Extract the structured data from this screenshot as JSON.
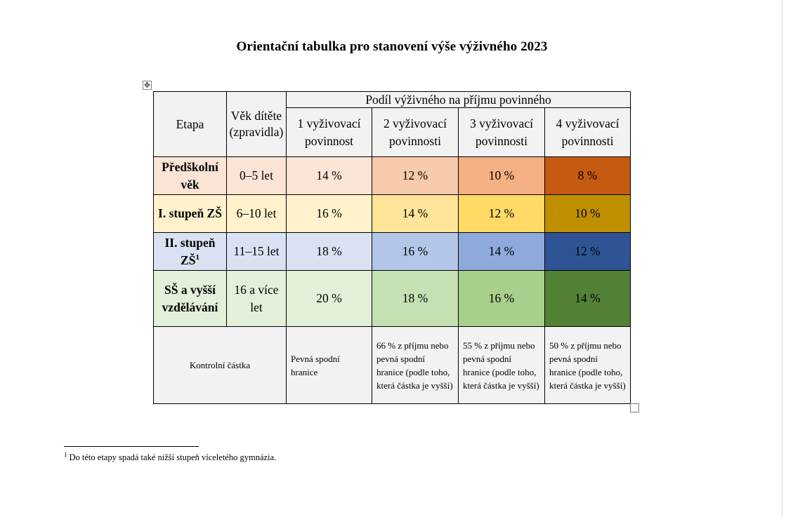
{
  "document": {
    "title": "Orientační tabulka pro stanovení výše výživného 2023"
  },
  "table": {
    "header": {
      "stage": "Etapa",
      "age": "Věk dítěte (zpravidla)",
      "share_group": "Podíl výživného na příjmu povinného",
      "obligations": [
        "1 vyživovací povinnost",
        "2 vyživovací povinnosti",
        "3 vyživovací povinnosti",
        "4 vyživovací povinnosti"
      ]
    },
    "rows": [
      {
        "stage": "Předškolní věk",
        "stage_sup": "",
        "age": "0–5 let",
        "values": [
          "14 %",
          "12 %",
          "10 %",
          "8 %"
        ]
      },
      {
        "stage": "I. stupeň ZŠ",
        "stage_sup": "",
        "age": "6–10 let",
        "values": [
          "16 %",
          "14 %",
          "12 %",
          "10 %"
        ]
      },
      {
        "stage": "II. stupeň ZŠ",
        "stage_sup": "1",
        "age": "11–15 let",
        "values": [
          "18 %",
          "16 %",
          "14 %",
          "12 %"
        ]
      },
      {
        "stage": "SŠ a vyšší vzdělávání",
        "stage_sup": "",
        "age": "16 a více let",
        "values": [
          "20 %",
          "18 %",
          "16 %",
          "14 %"
        ]
      }
    ],
    "control": {
      "label": "Kontrolní částka",
      "cells": [
        "Pevná spodní hranice",
        "66 % z příjmu nebo pevná spodní hranice (podle toho, která částka je vyšší)",
        "55 % z příjmu nebo pevná spodní hranice (podle toho, která částka je vyšší)",
        "50 % z příjmu nebo pevná spodní hranice (podle toho, která částka je vyšší)"
      ]
    },
    "colors": {
      "preschool": [
        "#fbe4d5",
        "#f7caac",
        "#f4b083",
        "#c55a11"
      ],
      "primary1": [
        "#fff2cc",
        "#ffe599",
        "#ffd966",
        "#bf8f00"
      ],
      "primary2": [
        "#d9e2f3",
        "#b4c6e7",
        "#8eaadb",
        "#2f5496"
      ],
      "secondary": [
        "#e2efd9",
        "#c5e0b3",
        "#a8d08d",
        "#538135"
      ]
    }
  },
  "footnote": {
    "mark": "1",
    "text": "Do této etapy spadá také nižší stupeň víceletého gymnázia."
  }
}
